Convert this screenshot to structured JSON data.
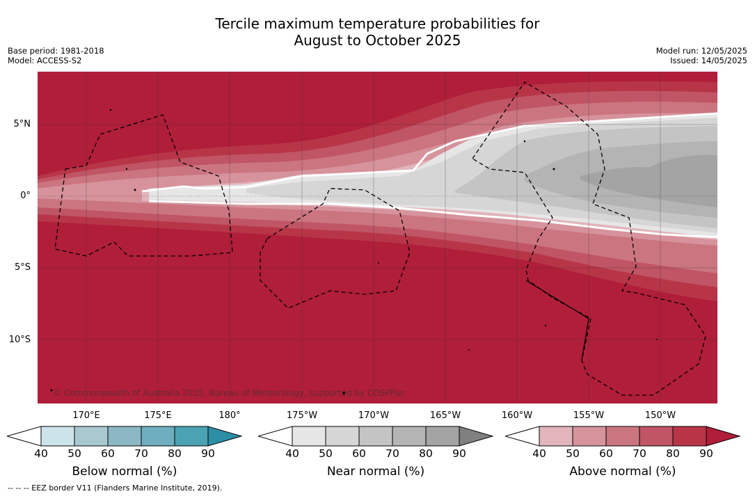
{
  "title_line1": "Tercile maximum temperature probabilities for",
  "title_line2": "August to October 2025",
  "base_period": "Base period: 1981-2018",
  "model": "Model: ACCESS-S2",
  "model_run": "Model run: 12/05/2025",
  "issued": "Issued: 14/05/2025",
  "copyright": "© Commonwealth of Australia 2025, Bureau of Meteorology, supported by COSPPac",
  "footer": "--  --  -- EEZ border V11 (Flanders Marine Institute, 2019).",
  "lat_labels": [
    "5°N",
    "0°",
    "5°S",
    "10°S"
  ],
  "lon_labels": [
    "170°E",
    "175°E",
    "180°",
    "175°W",
    "170°W",
    "165°W",
    "160°W",
    "155°W",
    "150°W"
  ],
  "colorbars": [
    {
      "title": "Below normal (%)",
      "ticks": [
        "40",
        "50",
        "60",
        "70",
        "80",
        "90"
      ],
      "colors": [
        "#cde3ea",
        "#a9c9d1",
        "#8cb8c5",
        "#6eaebf",
        "#4ba2b3",
        "#2c8fa5"
      ],
      "extend_color": "#2c8fa5"
    },
    {
      "title": "Near normal (%)",
      "ticks": [
        "40",
        "50",
        "60",
        "70",
        "80",
        "90"
      ],
      "colors": [
        "#e6e6e6",
        "#d6d6d6",
        "#c4c4c4",
        "#b4b4b4",
        "#a4a4a4",
        "#808080"
      ],
      "extend_color": "#808080"
    },
    {
      "title": "Above normal (%)",
      "ticks": [
        "40",
        "50",
        "60",
        "70",
        "80",
        "90"
      ],
      "colors": [
        "#e2b4bb",
        "#d6939c",
        "#cb7580",
        "#c05565",
        "#b83548",
        "#b01e3a"
      ],
      "extend_color": "#b01e3a"
    }
  ]
}
